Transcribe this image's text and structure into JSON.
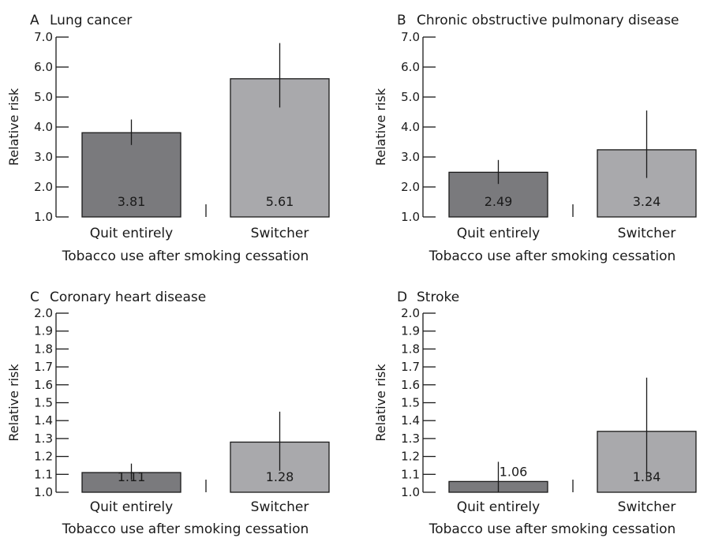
{
  "chart_data": [
    {
      "type": "bar",
      "panel": "A",
      "title": "Lung cancer",
      "xlabel": "Tobacco use after smoking cessation",
      "ylabel": "Relative risk",
      "categories": [
        "Quit entirely",
        "Switcher"
      ],
      "values": [
        3.81,
        5.61
      ],
      "ci_low": [
        3.4,
        4.65
      ],
      "ci_high": [
        4.25,
        6.8
      ],
      "value_labels": [
        "3.81",
        "5.61"
      ],
      "ylim": [
        1.0,
        7.0
      ],
      "yticks": [
        "1.0",
        "2.0",
        "3.0",
        "4.0",
        "5.0",
        "6.0",
        "7.0"
      ],
      "bar_colors": [
        "#7a7a7d",
        "#a9a9ac"
      ]
    },
    {
      "type": "bar",
      "panel": "B",
      "title": "Chronic obstructive pulmonary disease",
      "xlabel": "Tobacco use after smoking cessation",
      "ylabel": "Relative risk",
      "categories": [
        "Quit entirely",
        "Switcher"
      ],
      "values": [
        2.49,
        3.24
      ],
      "ci_low": [
        2.1,
        2.3
      ],
      "ci_high": [
        2.9,
        4.55
      ],
      "value_labels": [
        "2.49",
        "3.24"
      ],
      "ylim": [
        1.0,
        7.0
      ],
      "yticks": [
        "1.0",
        "2.0",
        "3.0",
        "4.0",
        "5.0",
        "6.0",
        "7.0"
      ],
      "bar_colors": [
        "#7a7a7d",
        "#a9a9ac"
      ]
    },
    {
      "type": "bar",
      "panel": "C",
      "title": "Coronary heart disease",
      "xlabel": "Tobacco use after smoking cessation",
      "ylabel": "Relative risk",
      "categories": [
        "Quit entirely",
        "Switcher"
      ],
      "values": [
        1.11,
        1.28
      ],
      "ci_low": [
        1.07,
        1.12
      ],
      "ci_high": [
        1.16,
        1.45
      ],
      "value_labels": [
        "1.11",
        "1.28"
      ],
      "ylim": [
        1.0,
        2.0
      ],
      "yticks": [
        "1.0",
        "1.1",
        "1.2",
        "1.3",
        "1.4",
        "1.5",
        "1.6",
        "1.7",
        "1.8",
        "1.9",
        "2.0"
      ],
      "bar_colors": [
        "#7a7a7d",
        "#a9a9ac"
      ]
    },
    {
      "type": "bar",
      "panel": "D",
      "title": "Stroke",
      "xlabel": "Tobacco use after smoking cessation",
      "ylabel": "Relative risk",
      "categories": [
        "Quit entirely",
        "Switcher"
      ],
      "values": [
        1.06,
        1.34
      ],
      "ci_low": [
        0.97,
        1.07
      ],
      "ci_high": [
        1.17,
        1.64
      ],
      "value_labels": [
        "1.06",
        "1.34"
      ],
      "ylim": [
        1.0,
        2.0
      ],
      "yticks": [
        "1.0",
        "1.1",
        "1.2",
        "1.3",
        "1.4",
        "1.5",
        "1.6",
        "1.7",
        "1.8",
        "1.9",
        "2.0"
      ],
      "bar_colors": [
        "#7a7a7d",
        "#a9a9ac"
      ]
    }
  ]
}
